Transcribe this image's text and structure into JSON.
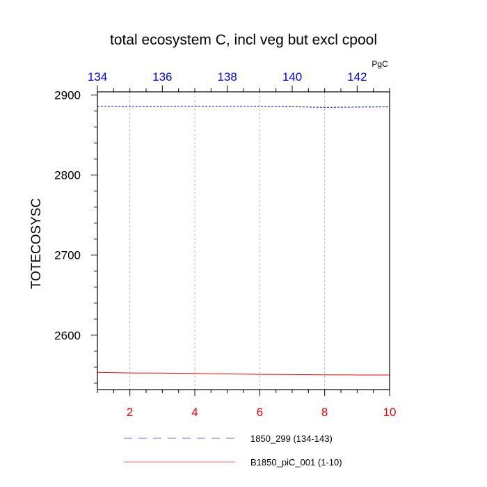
{
  "chart_data": {
    "type": "line",
    "title": "total ecosystem C, incl veg but excl cpool",
    "units": "PgC",
    "ylabel": "TOTECOSYSC",
    "ylim": [
      2532,
      2904
    ],
    "yticks": [
      2600,
      2700,
      2800,
      2900
    ],
    "bottom_axis": {
      "range": [
        1,
        10
      ],
      "ticks": [
        2,
        4,
        6,
        8,
        10
      ],
      "color": "#ff0000"
    },
    "top_axis": {
      "range": [
        134,
        143
      ],
      "ticks": [
        134,
        136,
        138,
        140,
        142
      ],
      "color": "#0000ff"
    },
    "grid": "vertical dotted",
    "series": [
      {
        "name": "1850_299 (134-143)",
        "axis": "top",
        "color": "#0000ff",
        "dash": "dashed",
        "x": [
          134,
          135,
          136,
          137,
          138,
          139,
          140,
          141,
          142,
          143
        ],
        "y": [
          2886.0,
          2885.6,
          2885.8,
          2886.0,
          2885.9,
          2885.8,
          2885.4,
          2884.6,
          2885.0,
          2885.2
        ]
      },
      {
        "name": "B1850_piC_001 (1-10)",
        "axis": "bottom",
        "color": "#ff0000",
        "dash": "solid",
        "x": [
          1,
          2,
          3,
          4,
          5,
          6,
          7,
          8,
          9,
          10
        ],
        "y": [
          2553.5,
          2552.8,
          2552.6,
          2552.2,
          2551.6,
          2551.0,
          2550.8,
          2550.5,
          2550.3,
          2550.2
        ]
      }
    ]
  }
}
